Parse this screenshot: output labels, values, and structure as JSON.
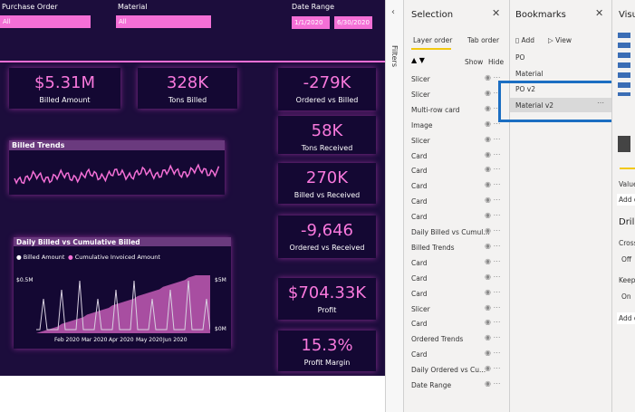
{
  "slicers": {
    "purchase_order": {
      "label": "Purchase Order",
      "value": "All"
    },
    "material": {
      "label": "Material",
      "value": "All"
    },
    "date_range": {
      "label": "Date Range",
      "start": "1/1/2020",
      "end": "6/30/2020"
    }
  },
  "cards": [
    {
      "value": "$5.31M",
      "label": "Billed Amount"
    },
    {
      "value": "328K",
      "label": "Tons Billed"
    },
    {
      "value": "-279K",
      "label": "Ordered vs Billed"
    },
    {
      "value": "58K",
      "label": "Tons Received"
    },
    {
      "value": "270K",
      "label": "Billed vs Received"
    },
    {
      "value": "-9,646",
      "label": "Ordered vs Received"
    },
    {
      "value": "$704.33K",
      "label": "Profit"
    },
    {
      "value": "15.3%",
      "label": "Profit Margin"
    }
  ],
  "billed_trends": {
    "title": "Billed Trends"
  },
  "daily_chart": {
    "title": "Daily Billed vs Cumulative Billed",
    "legend": [
      "Billed Amount",
      "Cumulative Invoiced Amount"
    ],
    "y_left_top": "$0.5M",
    "y_right_top": "$5M",
    "y_right_bottom": "$0M",
    "x_labels": [
      "Feb 2020",
      "Mar 2020",
      "Apr 2020",
      "May 2020",
      "Jun 2020"
    ]
  },
  "filters": {
    "label": "Filters"
  },
  "selection": {
    "title": "Selection",
    "tabs": [
      "Layer order",
      "Tab order"
    ],
    "show": "Show",
    "hide": "Hide",
    "layers": [
      "Slicer",
      "Slicer",
      "Multi-row card",
      "Image",
      "Slicer",
      "Card",
      "Card",
      "Card",
      "Card",
      "Card",
      "Daily Billed vs Cumul...",
      "Billed Trends",
      "Card",
      "Card",
      "Card",
      "Slicer",
      "Card",
      "Ordered Trends",
      "Card",
      "Daily Ordered vs Cu...",
      "Date Range"
    ]
  },
  "bookmarks": {
    "title": "Bookmarks",
    "add": "Add",
    "view": "View",
    "items": [
      "PO",
      "Material",
      "PO v2",
      "Material v2"
    ]
  },
  "visualizations": {
    "title": "Visu",
    "field": "Value",
    "add_1": "Add d",
    "drill": "Dril",
    "cross": "Cross-",
    "off": "Off",
    "keep": "Keep a",
    "on": "On",
    "add_2": "Add d"
  }
}
